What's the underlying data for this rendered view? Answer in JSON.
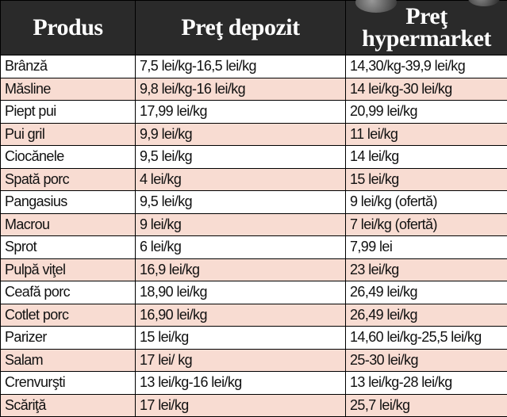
{
  "table": {
    "header": [
      "Produs",
      "Preţ depozit",
      "Preţ hypermarket"
    ],
    "rows": [
      [
        "Brânză",
        "7,5 lei/kg-16,5 lei/kg",
        "14,30/kg-39,9 lei/kg"
      ],
      [
        "Măsline",
        "9,8 lei/kg-16 lei/kg",
        "14 lei/kg-30 lei/kg"
      ],
      [
        "Piept pui",
        "17,99 lei/kg",
        "20,99 lei/kg"
      ],
      [
        "Pui gril",
        "9,9 lei/kg",
        "11 lei/kg"
      ],
      [
        "Ciocănele",
        "9,5 lei/kg",
        "14 lei/kg"
      ],
      [
        "Spată porc",
        "4 lei/kg",
        "15 lei/kg"
      ],
      [
        "Pangasius",
        "9,5 lei/kg",
        "9 lei/kg (ofertă)"
      ],
      [
        "Macrou",
        "9 lei/kg",
        "7 lei/kg (ofertă)"
      ],
      [
        "Sprot",
        "6 lei/kg",
        "7,99 lei"
      ],
      [
        "Pulpă viţel",
        "16,9 lei/kg",
        "23 lei/kg"
      ],
      [
        "Ceafă porc",
        "18,90 lei/kg",
        "26,49 lei/kg"
      ],
      [
        "Cotlet porc",
        "16,90 lei/kg",
        "26,49 lei/kg"
      ],
      [
        "Parizer",
        "15 lei/kg",
        "14,60 lei/kg-25,5 lei/kg"
      ],
      [
        "Salam",
        "17 lei/ kg",
        "25-30 lei/kg"
      ],
      [
        "Crenvurşti",
        "13 lei/kg-16 lei/kg",
        "13 lei/kg-28 lei/kg"
      ],
      [
        "Scăriţă",
        "17 lei/kg",
        "25,7 lei/kg"
      ]
    ]
  }
}
